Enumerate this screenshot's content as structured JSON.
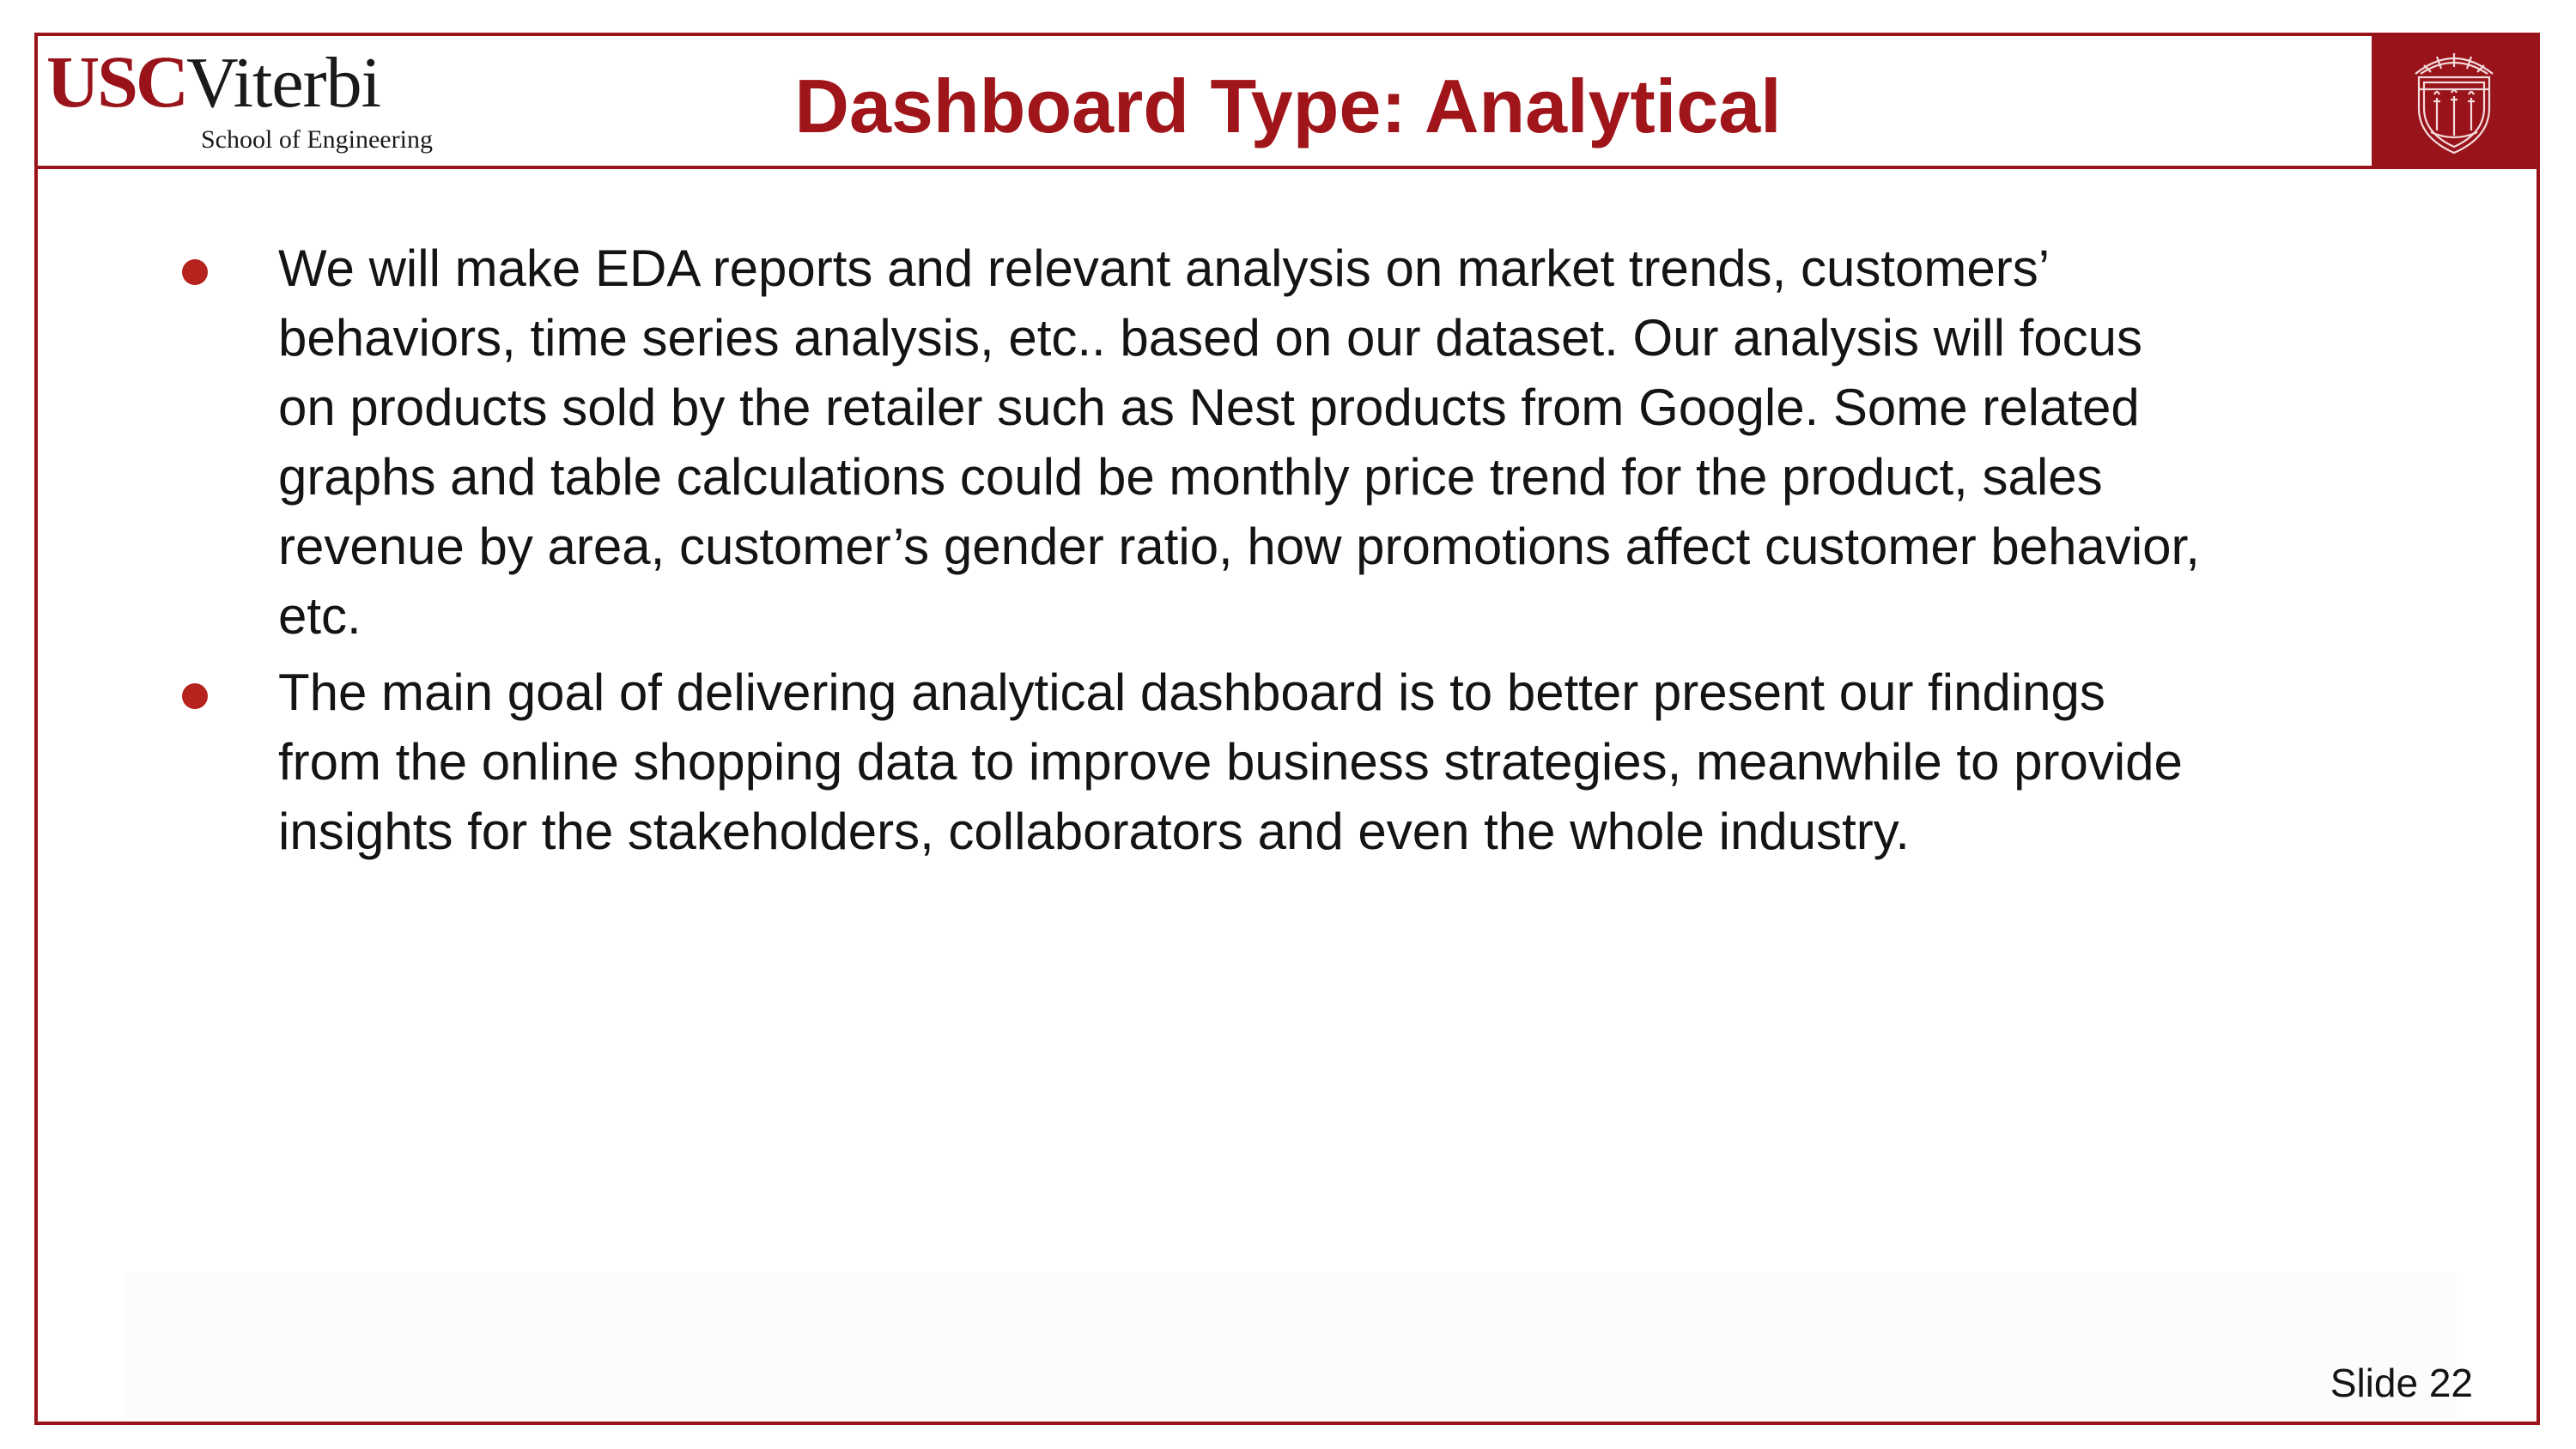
{
  "header": {
    "logo_usc": "USC",
    "logo_viterbi": "Viterbi",
    "logo_subtitle": "School of Engineering",
    "title": "Dashboard Type: Analytical",
    "seal_icon": "usc-seal-icon"
  },
  "bullets": [
    {
      "lines": [
        "We will make EDA reports and relevant analysis on market trends, customers’",
        "behaviors, time series analysis, etc.. based on our dataset. Our analysis will focus",
        "on products sold by the retailer such as Nest products from Google. Some related",
        "graphs and table calculations could be monthly price trend for the product, sales",
        "revenue by area, customer’s gender ratio, how promotions affect customer behavior,",
        "etc."
      ]
    },
    {
      "lines": [
        "The main goal of delivering analytical dashboard is to better present our findings",
        "from the online shopping data to improve business strategies, meanwhile to provide",
        "insights for the stakeholders, collaborators and even the whole industry."
      ]
    }
  ],
  "footer": {
    "slide_number": "Slide 22"
  },
  "colors": {
    "brand": "#99131a",
    "title": "#a0151a",
    "bullet": "#b6221c",
    "text": "#141414"
  }
}
